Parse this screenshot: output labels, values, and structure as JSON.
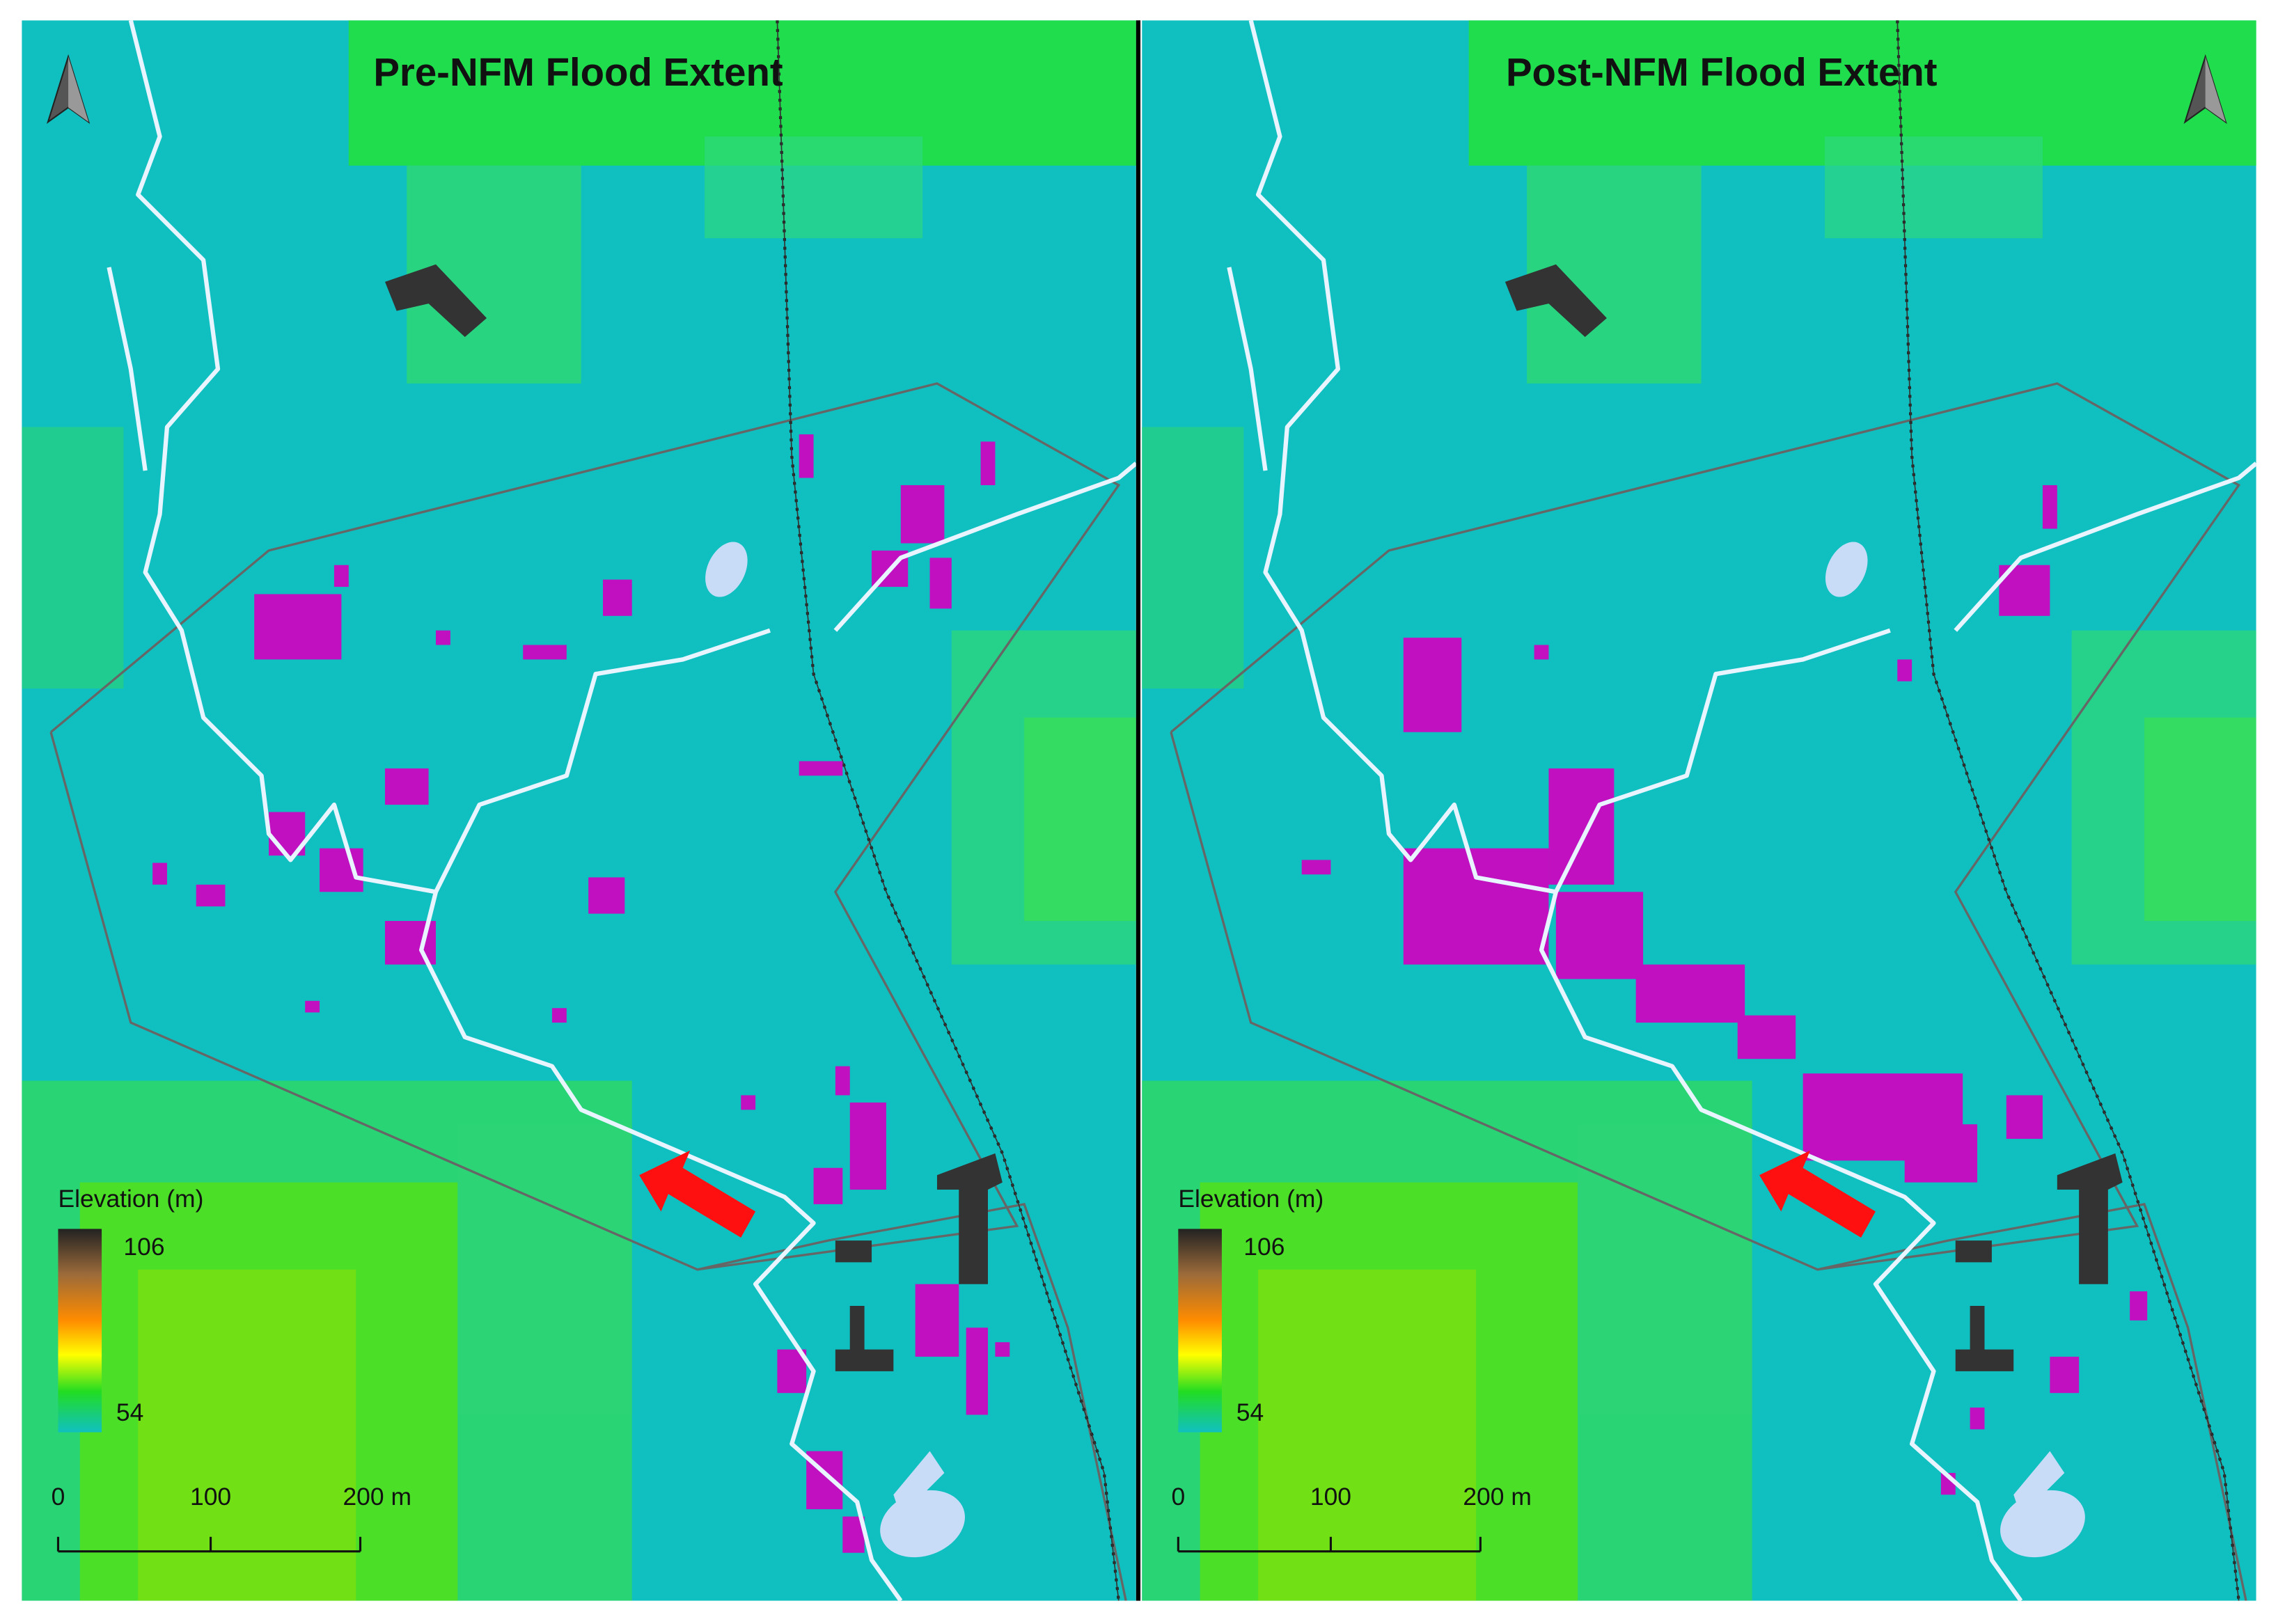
{
  "panels": [
    {
      "title": "Pre-NFM Flood Extent",
      "legend": {
        "title": "Elevation (m)",
        "max": "106",
        "min": "54"
      },
      "scale_bar": [
        "0",
        "100",
        "200 m"
      ]
    },
    {
      "title": "Post-NFM Flood Extent",
      "legend": {
        "title": "Elevation (m)",
        "max": "106",
        "min": "54"
      },
      "scale_bar": [
        "0",
        "100",
        "200 m"
      ]
    }
  ]
}
